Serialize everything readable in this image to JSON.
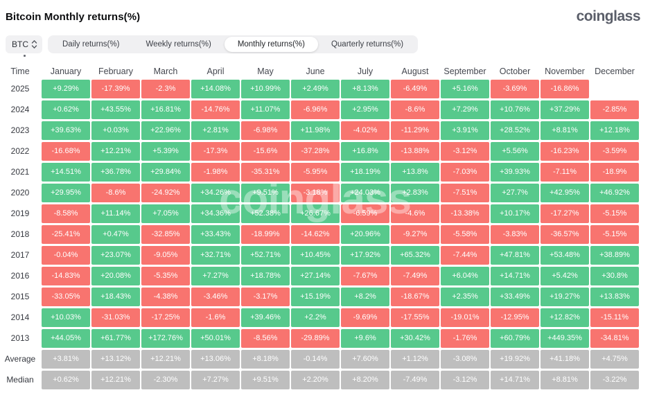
{
  "header": {
    "title": "Bitcoin Monthly returns(%)",
    "logo_text": "coinglass"
  },
  "controls": {
    "coin_selector": {
      "label": "BTC",
      "icon": "updown-chevron-icon"
    },
    "tabs": [
      {
        "label": "Daily returns(%)",
        "active": false
      },
      {
        "label": "Weekly returns(%)",
        "active": false
      },
      {
        "label": "Monthly returns(%)",
        "active": true
      },
      {
        "label": "Quarterly returns(%)",
        "active": false
      }
    ]
  },
  "colors": {
    "positive": "#57C98C",
    "negative": "#F8746F",
    "neutral": "#BEBEBE"
  },
  "watermark": "coinglass",
  "chart_data": {
    "type": "heatmap",
    "title": "Bitcoin Monthly returns(%)",
    "time_header": "Time",
    "columns": [
      "January",
      "February",
      "March",
      "April",
      "May",
      "June",
      "July",
      "August",
      "September",
      "October",
      "November",
      "December"
    ],
    "rows": [
      {
        "label": "2025",
        "neutral": false,
        "values": [
          "+9.29%",
          "-17.39%",
          "-2.3%",
          "+14.08%",
          "+10.99%",
          "+2.49%",
          "+8.13%",
          "-6.49%",
          "+5.16%",
          "-3.69%",
          "-16.86%",
          ""
        ]
      },
      {
        "label": "2024",
        "neutral": false,
        "values": [
          "+0.62%",
          "+43.55%",
          "+16.81%",
          "-14.76%",
          "+11.07%",
          "-6.96%",
          "+2.95%",
          "-8.6%",
          "+7.29%",
          "+10.76%",
          "+37.29%",
          "-2.85%"
        ]
      },
      {
        "label": "2023",
        "neutral": false,
        "values": [
          "+39.63%",
          "+0.03%",
          "+22.96%",
          "+2.81%",
          "-6.98%",
          "+11.98%",
          "-4.02%",
          "-11.29%",
          "+3.91%",
          "+28.52%",
          "+8.81%",
          "+12.18%"
        ]
      },
      {
        "label": "2022",
        "neutral": false,
        "values": [
          "-16.68%",
          "+12.21%",
          "+5.39%",
          "-17.3%",
          "-15.6%",
          "-37.28%",
          "+16.8%",
          "-13.88%",
          "-3.12%",
          "+5.56%",
          "-16.23%",
          "-3.59%"
        ]
      },
      {
        "label": "2021",
        "neutral": false,
        "values": [
          "+14.51%",
          "+36.78%",
          "+29.84%",
          "-1.98%",
          "-35.31%",
          "-5.95%",
          "+18.19%",
          "+13.8%",
          "-7.03%",
          "+39.93%",
          "-7.11%",
          "-18.9%"
        ]
      },
      {
        "label": "2020",
        "neutral": false,
        "values": [
          "+29.95%",
          "-8.6%",
          "-24.92%",
          "+34.26%",
          "+9.51%",
          "-3.18%",
          "+24.03%",
          "+2.83%",
          "-7.51%",
          "+27.7%",
          "+42.95%",
          "+46.92%"
        ]
      },
      {
        "label": "2019",
        "neutral": false,
        "values": [
          "-8.58%",
          "+11.14%",
          "+7.05%",
          "+34.36%",
          "+52.38%",
          "+26.67%",
          "-6.59%",
          "-4.6%",
          "-13.38%",
          "+10.17%",
          "-17.27%",
          "-5.15%"
        ]
      },
      {
        "label": "2018",
        "neutral": false,
        "values": [
          "-25.41%",
          "+0.47%",
          "-32.85%",
          "+33.43%",
          "-18.99%",
          "-14.62%",
          "+20.96%",
          "-9.27%",
          "-5.58%",
          "-3.83%",
          "-36.57%",
          "-5.15%"
        ]
      },
      {
        "label": "2017",
        "neutral": false,
        "values": [
          "-0.04%",
          "+23.07%",
          "-9.05%",
          "+32.71%",
          "+52.71%",
          "+10.45%",
          "+17.92%",
          "+65.32%",
          "-7.44%",
          "+47.81%",
          "+53.48%",
          "+38.89%"
        ]
      },
      {
        "label": "2016",
        "neutral": false,
        "values": [
          "-14.83%",
          "+20.08%",
          "-5.35%",
          "+7.27%",
          "+18.78%",
          "+27.14%",
          "-7.67%",
          "-7.49%",
          "+6.04%",
          "+14.71%",
          "+5.42%",
          "+30.8%"
        ]
      },
      {
        "label": "2015",
        "neutral": false,
        "values": [
          "-33.05%",
          "+18.43%",
          "-4.38%",
          "-3.46%",
          "-3.17%",
          "+15.19%",
          "+8.2%",
          "-18.67%",
          "+2.35%",
          "+33.49%",
          "+19.27%",
          "+13.83%"
        ]
      },
      {
        "label": "2014",
        "neutral": false,
        "values": [
          "+10.03%",
          "-31.03%",
          "-17.25%",
          "-1.6%",
          "+39.46%",
          "+2.2%",
          "-9.69%",
          "-17.55%",
          "-19.01%",
          "-12.95%",
          "+12.82%",
          "-15.11%"
        ]
      },
      {
        "label": "2013",
        "neutral": false,
        "values": [
          "+44.05%",
          "+61.77%",
          "+172.76%",
          "+50.01%",
          "-8.56%",
          "-29.89%",
          "+9.6%",
          "+30.42%",
          "-1.76%",
          "+60.79%",
          "+449.35%",
          "-34.81%"
        ]
      },
      {
        "label": "Average",
        "neutral": true,
        "values": [
          "+3.81%",
          "+13.12%",
          "+12.21%",
          "+13.06%",
          "+8.18%",
          "-0.14%",
          "+7.60%",
          "+1.12%",
          "-3.08%",
          "+19.92%",
          "+41.18%",
          "+4.75%"
        ]
      },
      {
        "label": "Median",
        "neutral": true,
        "values": [
          "+0.62%",
          "+12.21%",
          "-2.30%",
          "+7.27%",
          "+9.51%",
          "+2.20%",
          "+8.20%",
          "-7.49%",
          "-3.12%",
          "+14.71%",
          "+8.81%",
          "-3.22%"
        ]
      }
    ]
  }
}
